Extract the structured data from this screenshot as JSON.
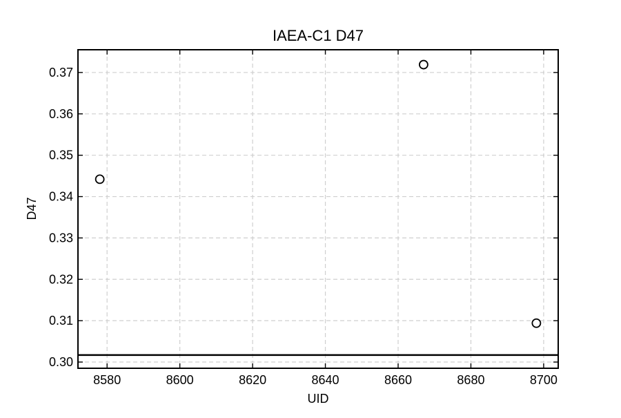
{
  "chart_data": {
    "type": "scatter",
    "title": "IAEA-C1 D47",
    "xlabel": "UID",
    "ylabel": "D47",
    "xlim": [
      8572,
      8704
    ],
    "ylim": [
      0.2985,
      0.3755
    ],
    "xticks": [
      8580,
      8600,
      8620,
      8640,
      8660,
      8680,
      8700
    ],
    "yticks": [
      0.3,
      0.31,
      0.32,
      0.33,
      0.34,
      0.35,
      0.36,
      0.37
    ],
    "xtick_labels": [
      "8580",
      "8600",
      "8620",
      "8640",
      "8660",
      "8680",
      "8700"
    ],
    "ytick_labels": [
      "0.30",
      "0.31",
      "0.32",
      "0.33",
      "0.34",
      "0.35",
      "0.36",
      "0.37"
    ],
    "grid": true,
    "series": [
      {
        "name": "IAEA-C1",
        "marker": "open-circle",
        "x": [
          8578,
          8667,
          8698
        ],
        "y": [
          0.3442,
          0.3719,
          0.3094
        ]
      }
    ],
    "reference_line": {
      "y": 0.3017
    }
  }
}
